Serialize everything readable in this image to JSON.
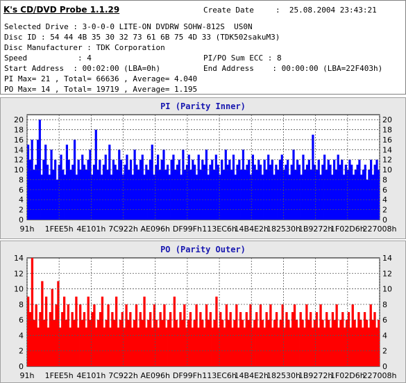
{
  "app_title": "K's CD/DVD Probe 1.1.29",
  "info": {
    "create_date_label": "Create Date",
    "create_date_value": ":  25.08.2004 23:43:21",
    "selected_drive": "Selected Drive : 3-0-0-0 LITE-ON DVDRW SOHW-812S  US0N",
    "disc_id": "Disc ID : 54 44 4B 35 30 32 73 61 6B 75 4D 33 (TDK502sakuM3)",
    "disc_manufacturer": "Disc Manufacturer : TDK Corporation",
    "speed": "Speed           : 4",
    "pipo_sum_ecc": "PI/PO Sum ECC : 8",
    "start_address": "Start Address  : 00:02:00 (LBA=0h)",
    "end_address": "End Address    : 00:00:00 (LBA=22F403h)",
    "pi_stats": "PI Max= 21 , Total= 66636 , Average= 4.040",
    "po_stats": "PO Max= 14 , Total= 19719 , Average= 1.195"
  },
  "chart_data": [
    {
      "type": "bar",
      "title": "PI (Parity Inner)",
      "color": "#0000ff",
      "ylim": [
        0,
        21
      ],
      "yticks": [
        0,
        2,
        4,
        6,
        8,
        10,
        12,
        14,
        16,
        18,
        20
      ],
      "xtick_labels": [
        "91h",
        "1FEE5h",
        "4E101h",
        "7C922h",
        "AE096h",
        "DF99Fh",
        "113EC6h",
        "14B4E2h",
        "182530h",
        "1B9272h",
        "1F02D6h",
        "227008h"
      ],
      "grid": true,
      "max": 21,
      "total": 66636,
      "average": 4.04,
      "values": [
        15,
        12,
        16,
        10,
        11,
        16,
        20,
        9,
        12,
        15,
        11,
        9,
        14,
        10,
        12,
        8,
        11,
        13,
        10,
        9,
        15,
        12,
        10,
        11,
        16,
        9,
        12,
        10,
        13,
        11,
        10,
        12,
        14,
        9,
        11,
        18,
        10,
        12,
        9,
        11,
        13,
        10,
        15,
        9,
        12,
        11,
        10,
        14,
        12,
        9,
        11,
        13,
        10,
        12,
        9,
        14,
        11,
        10,
        12,
        13,
        9,
        11,
        10,
        12,
        15,
        9,
        11,
        13,
        10,
        12,
        14,
        10,
        11,
        9,
        12,
        13,
        10,
        11,
        12,
        9,
        14,
        10,
        11,
        13,
        10,
        12,
        11,
        9,
        13,
        10,
        12,
        11,
        14,
        9,
        11,
        12,
        10,
        13,
        11,
        9,
        12,
        10,
        14,
        11,
        12,
        10,
        13,
        9,
        11,
        12,
        10,
        14,
        10,
        11,
        12,
        9,
        13,
        11,
        10,
        12,
        11,
        9,
        12,
        10,
        13,
        11,
        12,
        9,
        11,
        10,
        12,
        13,
        10,
        11,
        12,
        9,
        11,
        14,
        10,
        12,
        11,
        9,
        13,
        10,
        11,
        12,
        10,
        17,
        11,
        10,
        12,
        9,
        11,
        13,
        10,
        12,
        11,
        9,
        12,
        10,
        13,
        11,
        12,
        9,
        11,
        10,
        12,
        11,
        9,
        10,
        11,
        12,
        9,
        10,
        11,
        8,
        10,
        12,
        9,
        11,
        12,
        10
      ]
    },
    {
      "type": "bar",
      "title": "PO (Parity Outer)",
      "color": "#ff0000",
      "ylim": [
        0,
        14
      ],
      "yticks": [
        0,
        2,
        4,
        6,
        8,
        10,
        12,
        14
      ],
      "xtick_labels": [
        "91h",
        "1FEE5h",
        "4E101h",
        "7C922h",
        "AE096h",
        "DF99Fh",
        "113EC6h",
        "14B4E2h",
        "182530h",
        "1B9272h",
        "1F02D6h",
        "227008h"
      ],
      "grid": true,
      "max": 14,
      "total": 19719,
      "average": 1.195,
      "values": [
        9,
        7,
        14,
        6,
        8,
        5,
        7,
        11,
        6,
        9,
        5,
        7,
        10,
        6,
        8,
        11,
        5,
        7,
        9,
        6,
        8,
        5,
        7,
        6,
        9,
        5,
        8,
        6,
        7,
        5,
        9,
        6,
        7,
        8,
        5,
        6,
        7,
        9,
        5,
        6,
        8,
        5,
        7,
        6,
        9,
        5,
        6,
        7,
        5,
        8,
        6,
        7,
        5,
        6,
        8,
        5,
        7,
        6,
        9,
        5,
        6,
        7,
        5,
        8,
        6,
        5,
        7,
        6,
        8,
        5,
        6,
        7,
        5,
        9,
        6,
        5,
        7,
        6,
        8,
        5,
        6,
        7,
        5,
        6,
        8,
        5,
        7,
        6,
        5,
        8,
        6,
        7,
        5,
        6,
        9,
        5,
        7,
        6,
        5,
        8,
        6,
        7,
        5,
        6,
        8,
        5,
        7,
        6,
        5,
        7,
        6,
        8,
        5,
        6,
        7,
        5,
        8,
        6,
        5,
        7,
        6,
        8,
        5,
        6,
        7,
        5,
        6,
        8,
        5,
        7,
        6,
        5,
        7,
        8,
        6,
        5,
        7,
        6,
        5,
        8,
        6,
        7,
        5,
        6,
        7,
        5,
        8,
        6,
        5,
        7,
        6,
        5,
        7,
        6,
        8,
        5,
        6,
        7,
        5,
        6,
        7,
        5,
        8,
        6,
        5,
        7,
        6,
        5,
        7,
        6,
        5,
        8,
        6,
        7,
        5,
        6
      ]
    }
  ]
}
